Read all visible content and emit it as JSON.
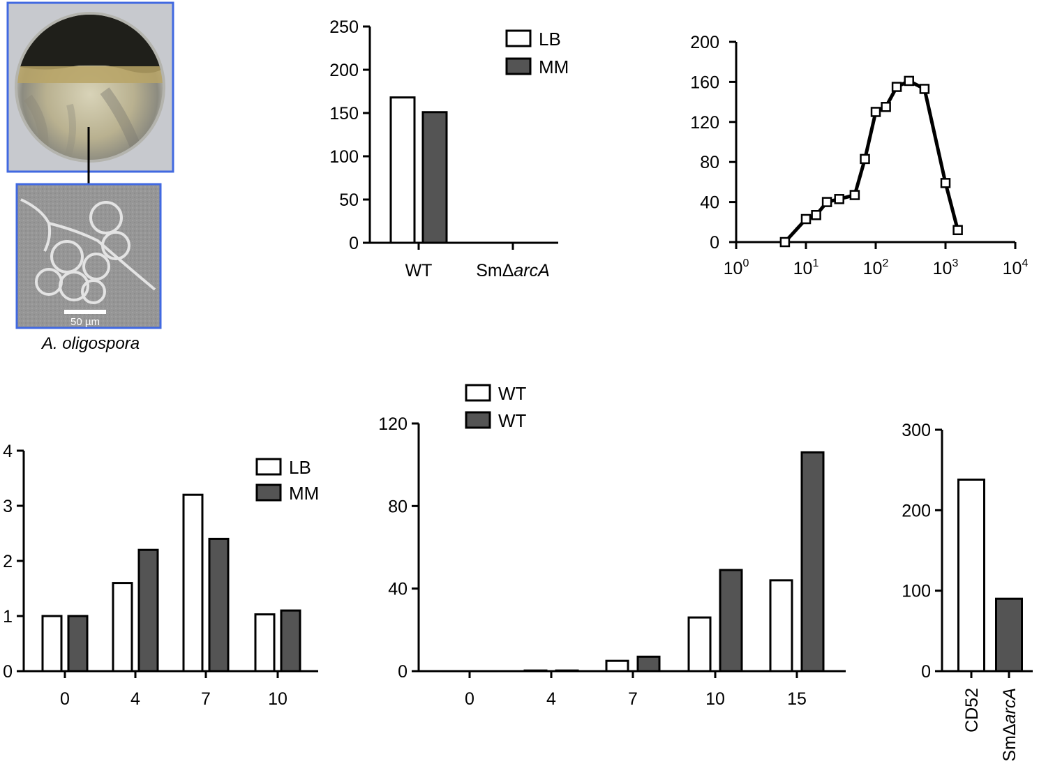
{
  "photos": {
    "organism_caption": "A. oligospora",
    "scale_bar_label": "50 µm"
  },
  "colors": {
    "open_bar": "#ffffff",
    "filled_bar": "#545454",
    "frame_blue": "#4169e1",
    "axis": "#000000"
  },
  "chart_data": [
    {
      "id": "top-bar",
      "type": "bar",
      "categories": [
        "WT",
        "SmΔarcA"
      ],
      "series": [
        {
          "name": "LB",
          "values": [
            168,
            0
          ]
        },
        {
          "name": "MM",
          "values": [
            151,
            0
          ]
        }
      ],
      "ylim": [
        0,
        250
      ],
      "yticks": [
        0,
        50,
        100,
        150,
        200,
        250
      ],
      "legend": "top-right"
    },
    {
      "id": "top-line",
      "type": "line",
      "x": [
        5,
        10,
        14,
        20,
        30,
        50,
        70,
        100,
        140,
        200,
        300,
        500,
        1000,
        1500
      ],
      "y": [
        0,
        23,
        27,
        40,
        43,
        47,
        83,
        130,
        135,
        155,
        161,
        153,
        59,
        12
      ],
      "xscale": "log",
      "xlim": [
        1,
        10000
      ],
      "xticks": [
        {
          "base": "10",
          "exp": "0"
        },
        {
          "base": "10",
          "exp": "1"
        },
        {
          "base": "10",
          "exp": "2"
        },
        {
          "base": "10",
          "exp": "3"
        },
        {
          "base": "10",
          "exp": "4"
        }
      ],
      "ylim": [
        0,
        200
      ],
      "yticks": [
        0,
        40,
        80,
        120,
        160,
        200
      ],
      "marker": "open-square"
    },
    {
      "id": "bottom-left-bar",
      "type": "bar",
      "categories": [
        "0",
        "4",
        "7",
        "10"
      ],
      "series": [
        {
          "name": "LB",
          "values": [
            1.0,
            1.6,
            3.2,
            1.03
          ]
        },
        {
          "name": "MM",
          "values": [
            1.0,
            2.2,
            2.4,
            1.1
          ]
        }
      ],
      "ylim": [
        0,
        4
      ],
      "yticks": [
        0,
        1,
        2,
        3,
        4
      ],
      "legend": "top-right"
    },
    {
      "id": "bottom-middle-bar",
      "type": "bar",
      "categories": [
        "0",
        "4",
        "7",
        "10",
        "15"
      ],
      "series": [
        {
          "name": "WT",
          "values": [
            0,
            0.3,
            5,
            26,
            44
          ]
        },
        {
          "name": "WT",
          "values": [
            0,
            0.3,
            7,
            49,
            106
          ]
        }
      ],
      "ylim": [
        0,
        120
      ],
      "yticks": [
        0,
        40,
        80,
        120
      ],
      "legend": "top-left"
    },
    {
      "id": "bottom-right-bar",
      "type": "bar",
      "categories": [
        "CD52",
        "SmΔarcA"
      ],
      "series": [
        {
          "values": [
            238,
            null
          ]
        },
        {
          "values": [
            null,
            90
          ]
        }
      ],
      "ylim": [
        0,
        300
      ],
      "yticks": [
        0,
        100,
        200,
        300
      ]
    }
  ]
}
